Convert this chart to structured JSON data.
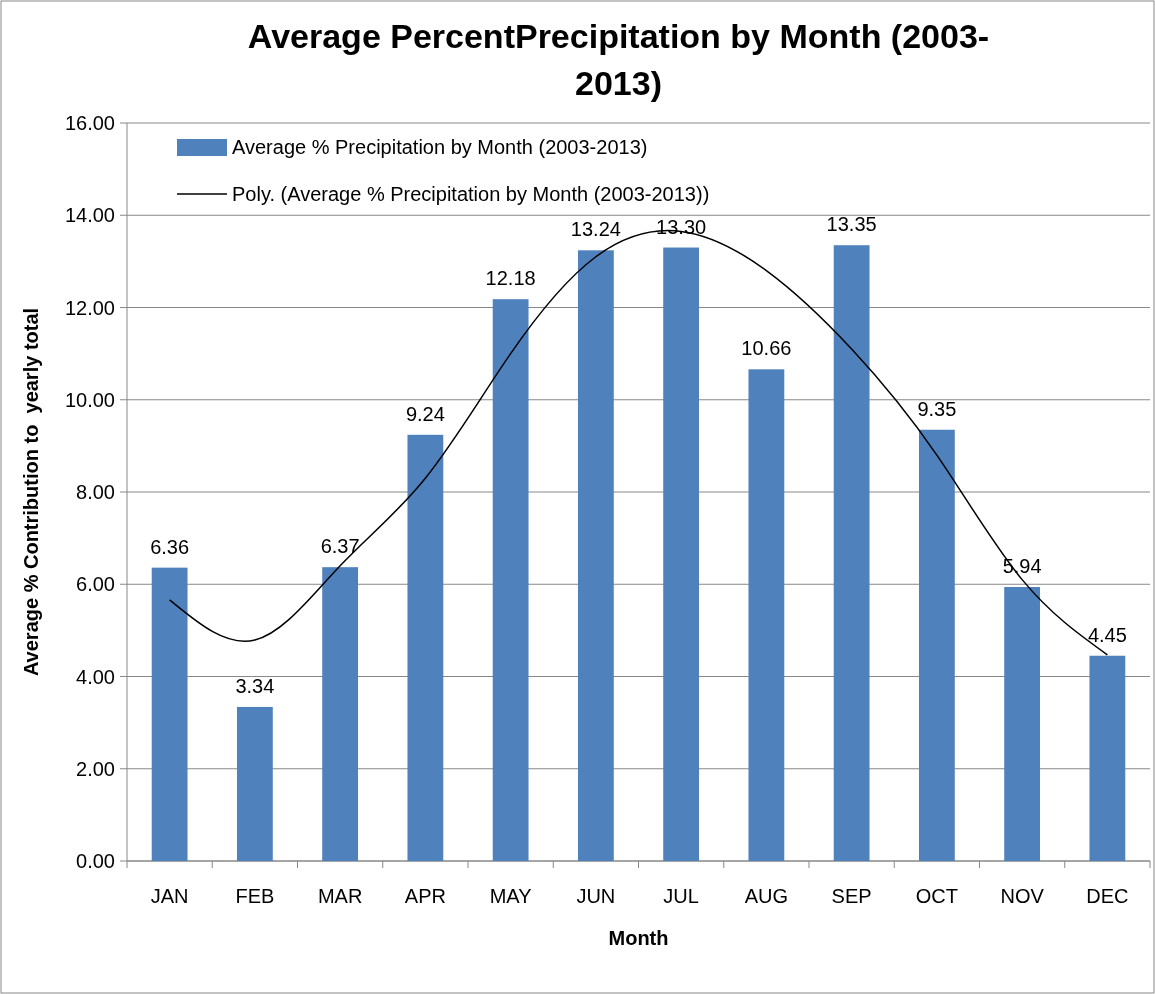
{
  "chart_data": {
    "type": "bar",
    "title": "Average PercentPrecipitation by Month (2003-2013)",
    "xlabel": "Month",
    "ylabel": "Average % Contribution to  yearly total",
    "categories": [
      "JAN",
      "FEB",
      "MAR",
      "APR",
      "MAY",
      "JUN",
      "JUL",
      "AUG",
      "SEP",
      "OCT",
      "NOV",
      "DEC"
    ],
    "series": [
      {
        "name": "Average % Precipitation by Month (2003-2013)",
        "color": "#4f81bd",
        "values": [
          6.36,
          3.34,
          6.37,
          9.24,
          12.18,
          13.24,
          13.3,
          10.66,
          13.35,
          9.35,
          5.94,
          4.45
        ],
        "value_labels": [
          "6.36",
          "3.34",
          "6.37",
          "9.24",
          "12.18",
          "13.24",
          "13.30",
          "10.66",
          "13.35",
          "9.35",
          "5.94",
          "4.45"
        ]
      },
      {
        "name": "Poly. (Average % Precipitation by Month (2003-2013))",
        "type": "line",
        "color": "#000000",
        "x": [
          "JAN",
          "FEB",
          "MAR",
          "APR",
          "MAY",
          "JUN",
          "JUL",
          "AUG",
          "SEP",
          "OCT",
          "NOV",
          "DEC"
        ],
        "values": [
          5.66,
          4.79,
          6.4,
          8.3,
          11.0,
          13.1,
          13.65,
          12.8,
          11.1,
          8.8,
          6.1,
          4.47
        ]
      }
    ],
    "ylim": [
      0,
      16
    ],
    "yticks": [
      {
        "value": 0,
        "label": "0.00"
      },
      {
        "value": 2,
        "label": "2.00"
      },
      {
        "value": 4,
        "label": "4.00"
      },
      {
        "value": 6,
        "label": "6.00"
      },
      {
        "value": 8,
        "label": "8.00"
      },
      {
        "value": 10,
        "label": "10.00"
      },
      {
        "value": 12,
        "label": "12.00"
      },
      {
        "value": 14,
        "label": "14.00"
      },
      {
        "value": 16,
        "label": "16.00"
      }
    ],
    "grid": "y",
    "legend": "top left"
  }
}
